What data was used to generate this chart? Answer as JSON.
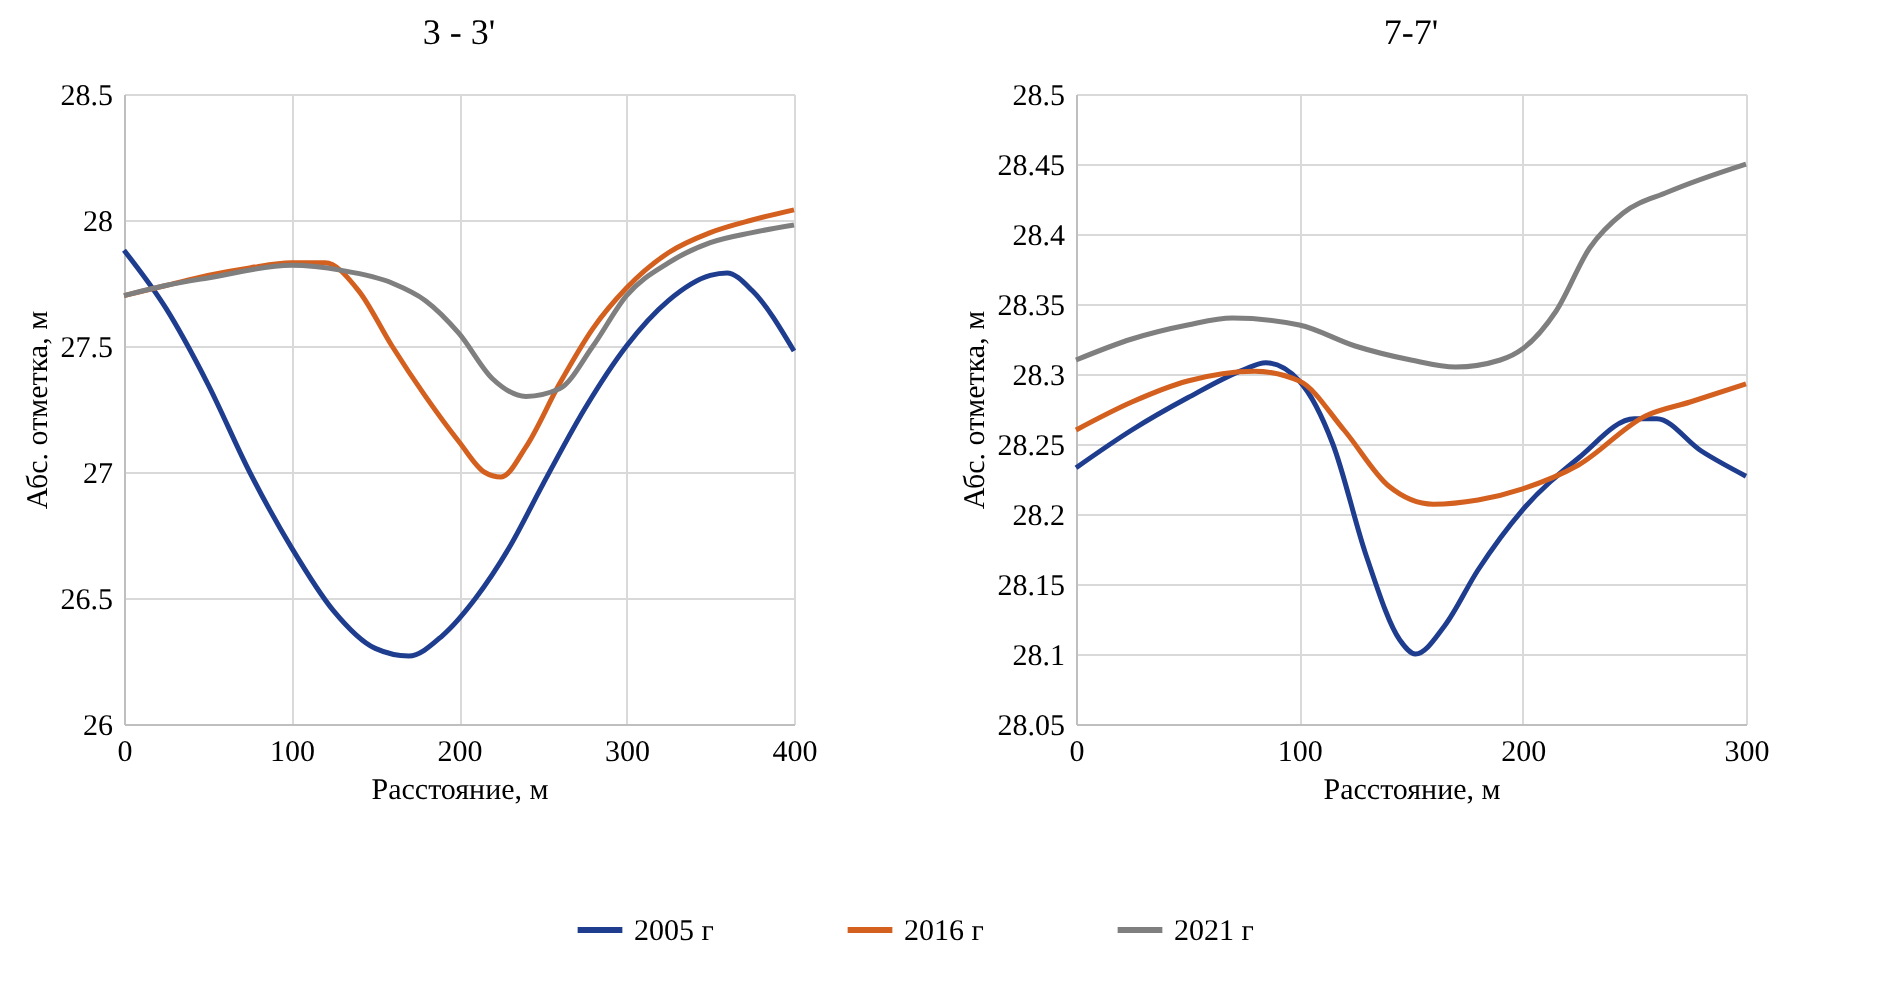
{
  "chart_data": [
    {
      "type": "line",
      "title": "3 - 3'",
      "xlabel": "Расстояние, м",
      "ylabel": "Абс. отметка, м",
      "xlim": [
        0,
        400
      ],
      "xticks": [
        0,
        100,
        200,
        300,
        400
      ],
      "ylim": [
        26,
        28.5
      ],
      "yticks": [
        26,
        26.5,
        27,
        27.5,
        28,
        28.5
      ],
      "grid": true,
      "legend": "bottom",
      "marker": "none",
      "line_style": "solid",
      "series": [
        {
          "name": "2005 г",
          "color": "#1f3d8f",
          "x": [
            0,
            25,
            50,
            75,
            100,
            125,
            150,
            170,
            190,
            210,
            230,
            250,
            275,
            300,
            325,
            350,
            360,
            375,
            400
          ],
          "values": [
            27.88,
            27.65,
            27.35,
            27.0,
            26.7,
            26.45,
            26.3,
            26.27,
            26.35,
            26.5,
            26.7,
            26.95,
            27.25,
            27.5,
            27.68,
            27.78,
            27.79,
            27.72,
            27.48
          ]
        },
        {
          "name": "2016 г",
          "color": "#d4601f",
          "x": [
            0,
            25,
            50,
            75,
            100,
            120,
            140,
            160,
            180,
            200,
            215,
            225,
            240,
            260,
            280,
            300,
            325,
            350,
            375,
            400
          ],
          "values": [
            27.7,
            27.74,
            27.78,
            27.81,
            27.83,
            27.83,
            27.72,
            27.5,
            27.3,
            27.12,
            27.0,
            26.98,
            27.1,
            27.35,
            27.57,
            27.73,
            27.87,
            27.95,
            28.0,
            28.04
          ]
        },
        {
          "name": "2021 г",
          "color": "#7f7f7f",
          "x": [
            0,
            25,
            50,
            100,
            130,
            160,
            180,
            200,
            220,
            240,
            260,
            280,
            300,
            325,
            350,
            375,
            400
          ],
          "values": [
            27.7,
            27.74,
            27.77,
            27.82,
            27.8,
            27.75,
            27.68,
            27.55,
            27.37,
            27.3,
            27.33,
            27.5,
            27.7,
            27.83,
            27.91,
            27.95,
            27.98
          ]
        }
      ]
    },
    {
      "type": "line",
      "title": "7-7'",
      "xlabel": "Расстояние, м",
      "ylabel": "Абс. отметка, м",
      "xlim": [
        0,
        300
      ],
      "xticks": [
        0,
        100,
        200,
        300
      ],
      "ylim": [
        28.05,
        28.5
      ],
      "yticks": [
        28.05,
        28.1,
        28.15,
        28.2,
        28.25,
        28.3,
        28.35,
        28.4,
        28.45,
        28.5
      ],
      "grid": true,
      "legend": "bottom",
      "marker": "none",
      "line_style": "solid",
      "series": [
        {
          "name": "2005 г",
          "color": "#1f3d8f",
          "x": [
            0,
            25,
            50,
            75,
            85,
            100,
            115,
            130,
            145,
            152,
            165,
            180,
            200,
            225,
            250,
            260,
            280,
            300
          ],
          "values": [
            28.233,
            28.26,
            28.283,
            28.303,
            28.308,
            28.295,
            28.25,
            28.17,
            28.11,
            28.1,
            28.12,
            28.16,
            28.203,
            28.24,
            28.268,
            28.268,
            28.245,
            28.227
          ]
        },
        {
          "name": "2016 г",
          "color": "#d4601f",
          "x": [
            0,
            25,
            50,
            80,
            100,
            120,
            140,
            160,
            180,
            200,
            225,
            255,
            275,
            300
          ],
          "values": [
            28.26,
            28.28,
            28.295,
            28.302,
            28.295,
            28.26,
            28.22,
            28.207,
            28.21,
            28.218,
            28.235,
            28.27,
            28.28,
            28.293
          ]
        },
        {
          "name": "2021 г",
          "color": "#7f7f7f",
          "x": [
            0,
            25,
            50,
            70,
            100,
            125,
            150,
            170,
            190,
            200,
            215,
            230,
            245,
            265,
            300
          ],
          "values": [
            28.31,
            28.325,
            28.335,
            28.34,
            28.335,
            28.32,
            28.31,
            28.305,
            28.31,
            28.318,
            28.345,
            28.39,
            28.415,
            28.43,
            28.45
          ]
        }
      ]
    }
  ]
}
